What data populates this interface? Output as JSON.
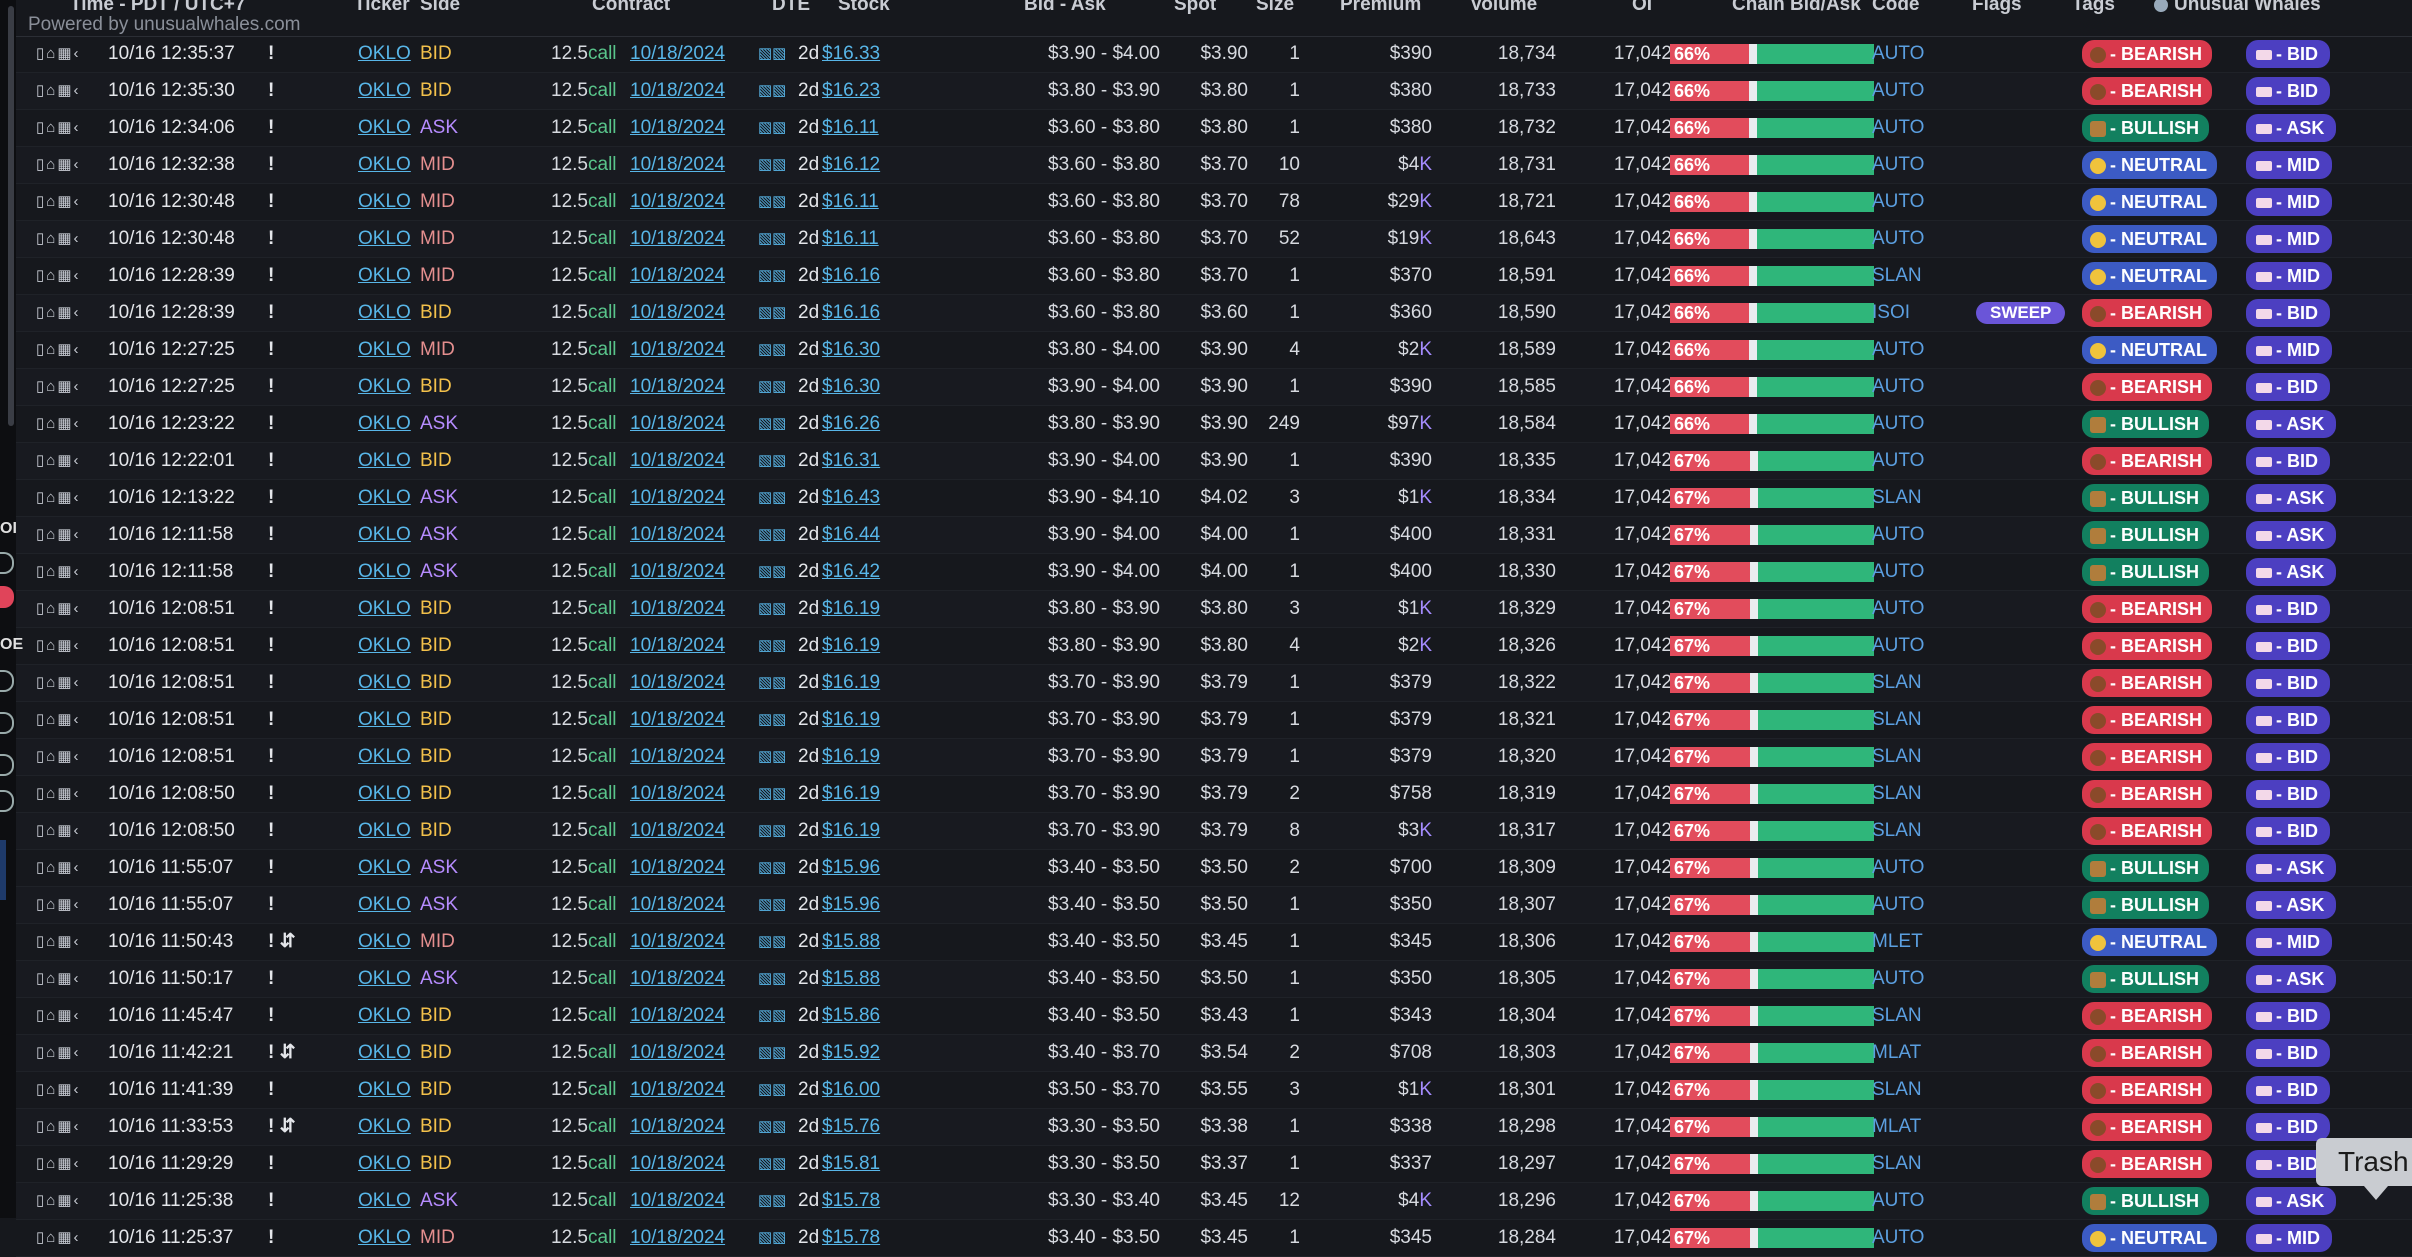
{
  "header": {
    "powered_by": "Powered by unusualwhales.com",
    "columns": {
      "time": "Time - PDT / UTC+7",
      "ticker": "Ticker",
      "side": "Side",
      "contract": "Contract",
      "dte": "DTE",
      "stock": "Stock",
      "bidask": "Bid - Ask",
      "spot": "Spot",
      "size": "Size",
      "premium": "Premium",
      "volume": "Volume",
      "oi": "OI",
      "chain": "Chain Bid/Ask",
      "code": "Code",
      "flags": "Flags",
      "tags": "Tags",
      "brand": "Unusual Whales"
    }
  },
  "left_rail": {
    "letters": [
      "OI",
      "OE"
    ]
  },
  "icon_names": [
    "bookmark-icon",
    "bell-icon",
    "trash-icon",
    "share-icon",
    "chart-bars-icon",
    "transfer-icon"
  ],
  "colors": {
    "bid": "#f3c14b",
    "ask": "#b68cff",
    "mid": "#e58f8f",
    "bearish": "#d9394c",
    "bullish": "#12805f",
    "neutral": "#3c5bc4",
    "link": "#58b6e8"
  },
  "rows": [
    {
      "time": "10/16 12:35:37",
      "warn": "!",
      "ticker": "OKLO",
      "side": "BID",
      "strike": "12.5",
      "type": "call",
      "expiry": "10/18/2024",
      "dte": "2d",
      "stock": "$16.33",
      "bidask": "$3.90 - $4.00",
      "spot": "$3.90",
      "size": "1",
      "prem": "$390",
      "prem_k": "",
      "vol": "18,734",
      "oi": "17,042",
      "chain_pct": "66%",
      "chain_red": 66,
      "code": "AUTO",
      "flag": "",
      "sentiment": "BEARISH",
      "sentiment_label": "- BEARISH",
      "side_tag": "- BID"
    },
    {
      "time": "10/16 12:35:30",
      "warn": "!",
      "ticker": "OKLO",
      "side": "BID",
      "strike": "12.5",
      "type": "call",
      "expiry": "10/18/2024",
      "dte": "2d",
      "stock": "$16.23",
      "bidask": "$3.80 - $3.90",
      "spot": "$3.80",
      "size": "1",
      "prem": "$380",
      "prem_k": "",
      "vol": "18,733",
      "oi": "17,042",
      "chain_pct": "66%",
      "chain_red": 66,
      "code": "AUTO",
      "flag": "",
      "sentiment": "BEARISH",
      "sentiment_label": "- BEARISH",
      "side_tag": "- BID"
    },
    {
      "time": "10/16 12:34:06",
      "warn": "!",
      "ticker": "OKLO",
      "side": "ASK",
      "strike": "12.5",
      "type": "call",
      "expiry": "10/18/2024",
      "dte": "2d",
      "stock": "$16.11",
      "bidask": "$3.60 - $3.80",
      "spot": "$3.80",
      "size": "1",
      "prem": "$380",
      "prem_k": "",
      "vol": "18,732",
      "oi": "17,042",
      "chain_pct": "66%",
      "chain_red": 66,
      "code": "AUTO",
      "flag": "",
      "sentiment": "BULLISH",
      "sentiment_label": "- BULLISH",
      "side_tag": "- ASK"
    },
    {
      "time": "10/16 12:32:38",
      "warn": "!",
      "ticker": "OKLO",
      "side": "MID",
      "strike": "12.5",
      "type": "call",
      "expiry": "10/18/2024",
      "dte": "2d",
      "stock": "$16.12",
      "bidask": "$3.60 - $3.80",
      "spot": "$3.70",
      "size": "10",
      "prem": "$4",
      "prem_k": "K",
      "vol": "18,731",
      "oi": "17,042",
      "chain_pct": "66%",
      "chain_red": 66,
      "code": "AUTO",
      "flag": "",
      "sentiment": "NEUTRAL",
      "sentiment_label": "- NEUTRAL",
      "side_tag": "- MID"
    },
    {
      "time": "10/16 12:30:48",
      "warn": "!",
      "ticker": "OKLO",
      "side": "MID",
      "strike": "12.5",
      "type": "call",
      "expiry": "10/18/2024",
      "dte": "2d",
      "stock": "$16.11",
      "bidask": "$3.60 - $3.80",
      "spot": "$3.70",
      "size": "78",
      "prem": "$29",
      "prem_k": "K",
      "vol": "18,721",
      "oi": "17,042",
      "chain_pct": "66%",
      "chain_red": 66,
      "code": "AUTO",
      "flag": "",
      "sentiment": "NEUTRAL",
      "sentiment_label": "- NEUTRAL",
      "side_tag": "- MID"
    },
    {
      "time": "10/16 12:30:48",
      "warn": "!",
      "ticker": "OKLO",
      "side": "MID",
      "strike": "12.5",
      "type": "call",
      "expiry": "10/18/2024",
      "dte": "2d",
      "stock": "$16.11",
      "bidask": "$3.60 - $3.80",
      "spot": "$3.70",
      "size": "52",
      "prem": "$19",
      "prem_k": "K",
      "vol": "18,643",
      "oi": "17,042",
      "chain_pct": "66%",
      "chain_red": 66,
      "code": "AUTO",
      "flag": "",
      "sentiment": "NEUTRAL",
      "sentiment_label": "- NEUTRAL",
      "side_tag": "- MID"
    },
    {
      "time": "10/16 12:28:39",
      "warn": "!",
      "ticker": "OKLO",
      "side": "MID",
      "strike": "12.5",
      "type": "call",
      "expiry": "10/18/2024",
      "dte": "2d",
      "stock": "$16.16",
      "bidask": "$3.60 - $3.80",
      "spot": "$3.70",
      "size": "1",
      "prem": "$370",
      "prem_k": "",
      "vol": "18,591",
      "oi": "17,042",
      "chain_pct": "66%",
      "chain_red": 66,
      "code": "SLAN",
      "flag": "",
      "sentiment": "NEUTRAL",
      "sentiment_label": "- NEUTRAL",
      "side_tag": "- MID"
    },
    {
      "time": "10/16 12:28:39",
      "warn": "!",
      "ticker": "OKLO",
      "side": "BID",
      "strike": "12.5",
      "type": "call",
      "expiry": "10/18/2024",
      "dte": "2d",
      "stock": "$16.16",
      "bidask": "$3.60 - $3.80",
      "spot": "$3.60",
      "size": "1",
      "prem": "$360",
      "prem_k": "",
      "vol": "18,590",
      "oi": "17,042",
      "chain_pct": "66%",
      "chain_red": 66,
      "code": "ISOI",
      "flag": "SWEEP",
      "sentiment": "BEARISH",
      "sentiment_label": "- BEARISH",
      "side_tag": "- BID"
    },
    {
      "time": "10/16 12:27:25",
      "warn": "!",
      "ticker": "OKLO",
      "side": "MID",
      "strike": "12.5",
      "type": "call",
      "expiry": "10/18/2024",
      "dte": "2d",
      "stock": "$16.30",
      "bidask": "$3.80 - $4.00",
      "spot": "$3.90",
      "size": "4",
      "prem": "$2",
      "prem_k": "K",
      "vol": "18,589",
      "oi": "17,042",
      "chain_pct": "66%",
      "chain_red": 66,
      "code": "AUTO",
      "flag": "",
      "sentiment": "NEUTRAL",
      "sentiment_label": "- NEUTRAL",
      "side_tag": "- MID"
    },
    {
      "time": "10/16 12:27:25",
      "warn": "!",
      "ticker": "OKLO",
      "side": "BID",
      "strike": "12.5",
      "type": "call",
      "expiry": "10/18/2024",
      "dte": "2d",
      "stock": "$16.30",
      "bidask": "$3.90 - $4.00",
      "spot": "$3.90",
      "size": "1",
      "prem": "$390",
      "prem_k": "",
      "vol": "18,585",
      "oi": "17,042",
      "chain_pct": "66%",
      "chain_red": 66,
      "code": "AUTO",
      "flag": "",
      "sentiment": "BEARISH",
      "sentiment_label": "- BEARISH",
      "side_tag": "- BID"
    },
    {
      "time": "10/16 12:23:22",
      "warn": "!",
      "ticker": "OKLO",
      "side": "ASK",
      "strike": "12.5",
      "type": "call",
      "expiry": "10/18/2024",
      "dte": "2d",
      "stock": "$16.26",
      "bidask": "$3.80 - $3.90",
      "spot": "$3.90",
      "size": "249",
      "prem": "$97",
      "prem_k": "K",
      "vol": "18,584",
      "oi": "17,042",
      "chain_pct": "66%",
      "chain_red": 66,
      "code": "AUTO",
      "flag": "",
      "sentiment": "BULLISH",
      "sentiment_label": "- BULLISH",
      "side_tag": "- ASK"
    },
    {
      "time": "10/16 12:22:01",
      "warn": "!",
      "ticker": "OKLO",
      "side": "BID",
      "strike": "12.5",
      "type": "call",
      "expiry": "10/18/2024",
      "dte": "2d",
      "stock": "$16.31",
      "bidask": "$3.90 - $4.00",
      "spot": "$3.90",
      "size": "1",
      "prem": "$390",
      "prem_k": "",
      "vol": "18,335",
      "oi": "17,042",
      "chain_pct": "67%",
      "chain_red": 67,
      "code": "AUTO",
      "flag": "",
      "sentiment": "BEARISH",
      "sentiment_label": "- BEARISH",
      "side_tag": "- BID"
    },
    {
      "time": "10/16 12:13:22",
      "warn": "!",
      "ticker": "OKLO",
      "side": "ASK",
      "strike": "12.5",
      "type": "call",
      "expiry": "10/18/2024",
      "dte": "2d",
      "stock": "$16.43",
      "bidask": "$3.90 - $4.10",
      "spot": "$4.02",
      "size": "3",
      "prem": "$1",
      "prem_k": "K",
      "vol": "18,334",
      "oi": "17,042",
      "chain_pct": "67%",
      "chain_red": 67,
      "code": "SLAN",
      "flag": "",
      "sentiment": "BULLISH",
      "sentiment_label": "- BULLISH",
      "side_tag": "- ASK"
    },
    {
      "time": "10/16 12:11:58",
      "warn": "!",
      "ticker": "OKLO",
      "side": "ASK",
      "strike": "12.5",
      "type": "call",
      "expiry": "10/18/2024",
      "dte": "2d",
      "stock": "$16.44",
      "bidask": "$3.90 - $4.00",
      "spot": "$4.00",
      "size": "1",
      "prem": "$400",
      "prem_k": "",
      "vol": "18,331",
      "oi": "17,042",
      "chain_pct": "67%",
      "chain_red": 67,
      "code": "AUTO",
      "flag": "",
      "sentiment": "BULLISH",
      "sentiment_label": "- BULLISH",
      "side_tag": "- ASK"
    },
    {
      "time": "10/16 12:11:58",
      "warn": "!",
      "ticker": "OKLO",
      "side": "ASK",
      "strike": "12.5",
      "type": "call",
      "expiry": "10/18/2024",
      "dte": "2d",
      "stock": "$16.42",
      "bidask": "$3.90 - $4.00",
      "spot": "$4.00",
      "size": "1",
      "prem": "$400",
      "prem_k": "",
      "vol": "18,330",
      "oi": "17,042",
      "chain_pct": "67%",
      "chain_red": 67,
      "code": "AUTO",
      "flag": "",
      "sentiment": "BULLISH",
      "sentiment_label": "- BULLISH",
      "side_tag": "- ASK"
    },
    {
      "time": "10/16 12:08:51",
      "warn": "!",
      "ticker": "OKLO",
      "side": "BID",
      "strike": "12.5",
      "type": "call",
      "expiry": "10/18/2024",
      "dte": "2d",
      "stock": "$16.19",
      "bidask": "$3.80 - $3.90",
      "spot": "$3.80",
      "size": "3",
      "prem": "$1",
      "prem_k": "K",
      "vol": "18,329",
      "oi": "17,042",
      "chain_pct": "67%",
      "chain_red": 67,
      "code": "AUTO",
      "flag": "",
      "sentiment": "BEARISH",
      "sentiment_label": "- BEARISH",
      "side_tag": "- BID"
    },
    {
      "time": "10/16 12:08:51",
      "warn": "!",
      "ticker": "OKLO",
      "side": "BID",
      "strike": "12.5",
      "type": "call",
      "expiry": "10/18/2024",
      "dte": "2d",
      "stock": "$16.19",
      "bidask": "$3.80 - $3.90",
      "spot": "$3.80",
      "size": "4",
      "prem": "$2",
      "prem_k": "K",
      "vol": "18,326",
      "oi": "17,042",
      "chain_pct": "67%",
      "chain_red": 67,
      "code": "AUTO",
      "flag": "",
      "sentiment": "BEARISH",
      "sentiment_label": "- BEARISH",
      "side_tag": "- BID"
    },
    {
      "time": "10/16 12:08:51",
      "warn": "!",
      "ticker": "OKLO",
      "side": "BID",
      "strike": "12.5",
      "type": "call",
      "expiry": "10/18/2024",
      "dte": "2d",
      "stock": "$16.19",
      "bidask": "$3.70 - $3.90",
      "spot": "$3.79",
      "size": "1",
      "prem": "$379",
      "prem_k": "",
      "vol": "18,322",
      "oi": "17,042",
      "chain_pct": "67%",
      "chain_red": 67,
      "code": "SLAN",
      "flag": "",
      "sentiment": "BEARISH",
      "sentiment_label": "- BEARISH",
      "side_tag": "- BID"
    },
    {
      "time": "10/16 12:08:51",
      "warn": "!",
      "ticker": "OKLO",
      "side": "BID",
      "strike": "12.5",
      "type": "call",
      "expiry": "10/18/2024",
      "dte": "2d",
      "stock": "$16.19",
      "bidask": "$3.70 - $3.90",
      "spot": "$3.79",
      "size": "1",
      "prem": "$379",
      "prem_k": "",
      "vol": "18,321",
      "oi": "17,042",
      "chain_pct": "67%",
      "chain_red": 67,
      "code": "SLAN",
      "flag": "",
      "sentiment": "BEARISH",
      "sentiment_label": "- BEARISH",
      "side_tag": "- BID"
    },
    {
      "time": "10/16 12:08:51",
      "warn": "!",
      "ticker": "OKLO",
      "side": "BID",
      "strike": "12.5",
      "type": "call",
      "expiry": "10/18/2024",
      "dte": "2d",
      "stock": "$16.19",
      "bidask": "$3.70 - $3.90",
      "spot": "$3.79",
      "size": "1",
      "prem": "$379",
      "prem_k": "",
      "vol": "18,320",
      "oi": "17,042",
      "chain_pct": "67%",
      "chain_red": 67,
      "code": "SLAN",
      "flag": "",
      "sentiment": "BEARISH",
      "sentiment_label": "- BEARISH",
      "side_tag": "- BID"
    },
    {
      "time": "10/16 12:08:50",
      "warn": "!",
      "ticker": "OKLO",
      "side": "BID",
      "strike": "12.5",
      "type": "call",
      "expiry": "10/18/2024",
      "dte": "2d",
      "stock": "$16.19",
      "bidask": "$3.70 - $3.90",
      "spot": "$3.79",
      "size": "2",
      "prem": "$758",
      "prem_k": "",
      "vol": "18,319",
      "oi": "17,042",
      "chain_pct": "67%",
      "chain_red": 67,
      "code": "SLAN",
      "flag": "",
      "sentiment": "BEARISH",
      "sentiment_label": "- BEARISH",
      "side_tag": "- BID"
    },
    {
      "time": "10/16 12:08:50",
      "warn": "!",
      "ticker": "OKLO",
      "side": "BID",
      "strike": "12.5",
      "type": "call",
      "expiry": "10/18/2024",
      "dte": "2d",
      "stock": "$16.19",
      "bidask": "$3.70 - $3.90",
      "spot": "$3.79",
      "size": "8",
      "prem": "$3",
      "prem_k": "K",
      "vol": "18,317",
      "oi": "17,042",
      "chain_pct": "67%",
      "chain_red": 67,
      "code": "SLAN",
      "flag": "",
      "sentiment": "BEARISH",
      "sentiment_label": "- BEARISH",
      "side_tag": "- BID"
    },
    {
      "time": "10/16 11:55:07",
      "warn": "!",
      "ticker": "OKLO",
      "side": "ASK",
      "strike": "12.5",
      "type": "call",
      "expiry": "10/18/2024",
      "dte": "2d",
      "stock": "$15.96",
      "bidask": "$3.40 - $3.50",
      "spot": "$3.50",
      "size": "2",
      "prem": "$700",
      "prem_k": "",
      "vol": "18,309",
      "oi": "17,042",
      "chain_pct": "67%",
      "chain_red": 67,
      "code": "AUTO",
      "flag": "",
      "sentiment": "BULLISH",
      "sentiment_label": "- BULLISH",
      "side_tag": "- ASK"
    },
    {
      "time": "10/16 11:55:07",
      "warn": "!",
      "ticker": "OKLO",
      "side": "ASK",
      "strike": "12.5",
      "type": "call",
      "expiry": "10/18/2024",
      "dte": "2d",
      "stock": "$15.96",
      "bidask": "$3.40 - $3.50",
      "spot": "$3.50",
      "size": "1",
      "prem": "$350",
      "prem_k": "",
      "vol": "18,307",
      "oi": "17,042",
      "chain_pct": "67%",
      "chain_red": 67,
      "code": "AUTO",
      "flag": "",
      "sentiment": "BULLISH",
      "sentiment_label": "- BULLISH",
      "side_tag": "- ASK"
    },
    {
      "time": "10/16 11:50:43",
      "warn": "! ⇵",
      "ticker": "OKLO",
      "side": "MID",
      "strike": "12.5",
      "type": "call",
      "expiry": "10/18/2024",
      "dte": "2d",
      "stock": "$15.88",
      "bidask": "$3.40 - $3.50",
      "spot": "$3.45",
      "size": "1",
      "prem": "$345",
      "prem_k": "",
      "vol": "18,306",
      "oi": "17,042",
      "chain_pct": "67%",
      "chain_red": 67,
      "code": "MLET",
      "flag": "",
      "sentiment": "NEUTRAL",
      "sentiment_label": "- NEUTRAL",
      "side_tag": "- MID"
    },
    {
      "time": "10/16 11:50:17",
      "warn": "!",
      "ticker": "OKLO",
      "side": "ASK",
      "strike": "12.5",
      "type": "call",
      "expiry": "10/18/2024",
      "dte": "2d",
      "stock": "$15.88",
      "bidask": "$3.40 - $3.50",
      "spot": "$3.50",
      "size": "1",
      "prem": "$350",
      "prem_k": "",
      "vol": "18,305",
      "oi": "17,042",
      "chain_pct": "67%",
      "chain_red": 67,
      "code": "AUTO",
      "flag": "",
      "sentiment": "BULLISH",
      "sentiment_label": "- BULLISH",
      "side_tag": "- ASK"
    },
    {
      "time": "10/16 11:45:47",
      "warn": "!",
      "ticker": "OKLO",
      "side": "BID",
      "strike": "12.5",
      "type": "call",
      "expiry": "10/18/2024",
      "dte": "2d",
      "stock": "$15.86",
      "bidask": "$3.40 - $3.50",
      "spot": "$3.43",
      "size": "1",
      "prem": "$343",
      "prem_k": "",
      "vol": "18,304",
      "oi": "17,042",
      "chain_pct": "67%",
      "chain_red": 67,
      "code": "SLAN",
      "flag": "",
      "sentiment": "BEARISH",
      "sentiment_label": "- BEARISH",
      "side_tag": "- BID"
    },
    {
      "time": "10/16 11:42:21",
      "warn": "! ⇵",
      "ticker": "OKLO",
      "side": "BID",
      "strike": "12.5",
      "type": "call",
      "expiry": "10/18/2024",
      "dte": "2d",
      "stock": "$15.92",
      "bidask": "$3.40 - $3.70",
      "spot": "$3.54",
      "size": "2",
      "prem": "$708",
      "prem_k": "",
      "vol": "18,303",
      "oi": "17,042",
      "chain_pct": "67%",
      "chain_red": 67,
      "code": "MLAT",
      "flag": "",
      "sentiment": "BEARISH",
      "sentiment_label": "- BEARISH",
      "side_tag": "- BID"
    },
    {
      "time": "10/16 11:41:39",
      "warn": "!",
      "ticker": "OKLO",
      "side": "BID",
      "strike": "12.5",
      "type": "call",
      "expiry": "10/18/2024",
      "dte": "2d",
      "stock": "$16.00",
      "bidask": "$3.50 - $3.70",
      "spot": "$3.55",
      "size": "3",
      "prem": "$1",
      "prem_k": "K",
      "vol": "18,301",
      "oi": "17,042",
      "chain_pct": "67%",
      "chain_red": 67,
      "code": "SLAN",
      "flag": "",
      "sentiment": "BEARISH",
      "sentiment_label": "- BEARISH",
      "side_tag": "- BID"
    },
    {
      "time": "10/16 11:33:53",
      "warn": "! ⇵",
      "ticker": "OKLO",
      "side": "BID",
      "strike": "12.5",
      "type": "call",
      "expiry": "10/18/2024",
      "dte": "2d",
      "stock": "$15.76",
      "bidask": "$3.30 - $3.50",
      "spot": "$3.38",
      "size": "1",
      "prem": "$338",
      "prem_k": "",
      "vol": "18,298",
      "oi": "17,042",
      "chain_pct": "67%",
      "chain_red": 67,
      "code": "MLAT",
      "flag": "",
      "sentiment": "BEARISH",
      "sentiment_label": "- BEARISH",
      "side_tag": "- BID"
    },
    {
      "time": "10/16 11:29:29",
      "warn": "!",
      "ticker": "OKLO",
      "side": "BID",
      "strike": "12.5",
      "type": "call",
      "expiry": "10/18/2024",
      "dte": "2d",
      "stock": "$15.81",
      "bidask": "$3.30 - $3.50",
      "spot": "$3.37",
      "size": "1",
      "prem": "$337",
      "prem_k": "",
      "vol": "18,297",
      "oi": "17,042",
      "chain_pct": "67%",
      "chain_red": 67,
      "code": "SLAN",
      "flag": "",
      "sentiment": "BEARISH",
      "sentiment_label": "- BEARISH",
      "side_tag": "- BID"
    },
    {
      "time": "10/16 11:25:38",
      "warn": "!",
      "ticker": "OKLO",
      "side": "ASK",
      "strike": "12.5",
      "type": "call",
      "expiry": "10/18/2024",
      "dte": "2d",
      "stock": "$15.78",
      "bidask": "$3.30 - $3.40",
      "spot": "$3.45",
      "size": "12",
      "prem": "$4",
      "prem_k": "K",
      "vol": "18,296",
      "oi": "17,042",
      "chain_pct": "67%",
      "chain_red": 67,
      "code": "AUTO",
      "flag": "",
      "sentiment": "BULLISH",
      "sentiment_label": "- BULLISH",
      "side_tag": "- ASK"
    },
    {
      "time": "10/16 11:25:37",
      "warn": "!",
      "ticker": "OKLO",
      "side": "MID",
      "strike": "12.5",
      "type": "call",
      "expiry": "10/18/2024",
      "dte": "2d",
      "stock": "$15.78",
      "bidask": "$3.40 - $3.50",
      "spot": "$3.45",
      "size": "1",
      "prem": "$345",
      "prem_k": "",
      "vol": "18,284",
      "oi": "17,042",
      "chain_pct": "67%",
      "chain_red": 67,
      "code": "AUTO",
      "flag": "",
      "sentiment": "NEUTRAL",
      "sentiment_label": "- NEUTRAL",
      "side_tag": "- MID"
    }
  ],
  "tooltip": {
    "text": "Trash"
  }
}
